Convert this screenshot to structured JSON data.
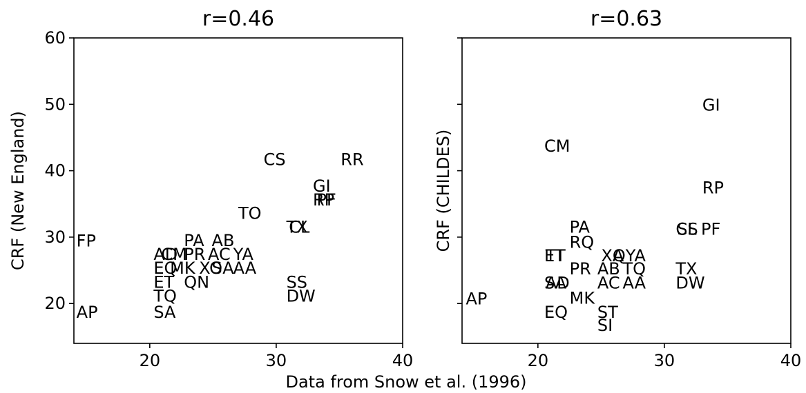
{
  "figure": {
    "xlabel": "Data from Snow et al. (1996)"
  },
  "chart_data": [
    {
      "type": "scatter",
      "title": "r=0.46",
      "xlabel": "",
      "ylabel": "CRF (New England)",
      "xlim": [
        14,
        40
      ],
      "ylim": [
        14,
        60
      ],
      "xticks": [
        20,
        30,
        40
      ],
      "yticks": [
        20,
        30,
        40,
        50,
        60
      ],
      "show_yticklabels": true,
      "grid": false,
      "points": [
        {
          "label": "FP",
          "x": 14.2,
          "y": 29.5
        },
        {
          "label": "AP",
          "x": 14.2,
          "y": 18.8
        },
        {
          "label": "CS",
          "x": 29.0,
          "y": 41.8
        },
        {
          "label": "RR",
          "x": 35.1,
          "y": 41.8
        },
        {
          "label": "GI",
          "x": 32.9,
          "y": 37.8
        },
        {
          "label": "RP",
          "x": 32.9,
          "y": 35.7
        },
        {
          "label": "PF",
          "x": 33.2,
          "y": 35.7
        },
        {
          "label": "TO",
          "x": 27.0,
          "y": 33.7
        },
        {
          "label": "TX",
          "x": 30.8,
          "y": 31.6
        },
        {
          "label": "CL",
          "x": 31.0,
          "y": 31.6
        },
        {
          "label": "PA",
          "x": 22.7,
          "y": 29.6
        },
        {
          "label": "AB",
          "x": 24.9,
          "y": 29.6
        },
        {
          "label": "AD",
          "x": 20.3,
          "y": 27.5
        },
        {
          "label": "CM",
          "x": 20.9,
          "y": 27.5
        },
        {
          "label": "PR",
          "x": 22.7,
          "y": 27.5
        },
        {
          "label": "AC",
          "x": 24.6,
          "y": 27.5
        },
        {
          "label": "YA",
          "x": 26.6,
          "y": 27.5
        },
        {
          "label": "EQ",
          "x": 20.3,
          "y": 25.4
        },
        {
          "label": "MK",
          "x": 21.6,
          "y": 25.4
        },
        {
          "label": "XO",
          "x": 23.9,
          "y": 25.4
        },
        {
          "label": "SA",
          "x": 24.9,
          "y": 25.4
        },
        {
          "label": "AA",
          "x": 26.6,
          "y": 25.4
        },
        {
          "label": "ET",
          "x": 20.3,
          "y": 23.3
        },
        {
          "label": "QN",
          "x": 22.7,
          "y": 23.3
        },
        {
          "label": "SS",
          "x": 30.8,
          "y": 23.3
        },
        {
          "label": "TQ",
          "x": 20.3,
          "y": 21.2
        },
        {
          "label": "DW",
          "x": 30.8,
          "y": 21.2
        },
        {
          "label": "SA",
          "x": 20.3,
          "y": 18.8
        }
      ]
    },
    {
      "type": "scatter",
      "title": "r=0.63",
      "xlabel": "",
      "ylabel": "CRF (CHILDES)",
      "xlim": [
        14,
        40
      ],
      "ylim": [
        14,
        60
      ],
      "xticks": [
        20,
        30,
        40
      ],
      "yticks": [
        20,
        30,
        40,
        50,
        60
      ],
      "show_yticklabels": false,
      "grid": false,
      "points": [
        {
          "label": "GI",
          "x": 33.0,
          "y": 50.0
        },
        {
          "label": "CM",
          "x": 20.5,
          "y": 43.8
        },
        {
          "label": "RP",
          "x": 33.0,
          "y": 37.5
        },
        {
          "label": "PA",
          "x": 22.5,
          "y": 31.6
        },
        {
          "label": "CL",
          "x": 30.9,
          "y": 31.3
        },
        {
          "label": "SS",
          "x": 31.0,
          "y": 31.3
        },
        {
          "label": "PF",
          "x": 32.9,
          "y": 31.3
        },
        {
          "label": "RQ",
          "x": 22.5,
          "y": 29.3
        },
        {
          "label": "ET",
          "x": 20.5,
          "y": 27.3
        },
        {
          "label": "TT",
          "x": 20.6,
          "y": 27.3
        },
        {
          "label": "XA",
          "x": 25.0,
          "y": 27.3
        },
        {
          "label": "QYA",
          "x": 25.9,
          "y": 27.3
        },
        {
          "label": "PR",
          "x": 22.5,
          "y": 25.3
        },
        {
          "label": "AB",
          "x": 24.7,
          "y": 25.3
        },
        {
          "label": "TQ",
          "x": 26.7,
          "y": 25.3
        },
        {
          "label": "TX",
          "x": 30.9,
          "y": 25.3
        },
        {
          "label": "SA",
          "x": 20.5,
          "y": 23.2
        },
        {
          "label": "AD",
          "x": 20.6,
          "y": 23.2
        },
        {
          "label": "AC",
          "x": 24.7,
          "y": 23.2
        },
        {
          "label": "AA",
          "x": 26.7,
          "y": 23.2
        },
        {
          "label": "DW",
          "x": 30.9,
          "y": 23.2
        },
        {
          "label": "AP",
          "x": 14.3,
          "y": 20.8
        },
        {
          "label": "MK",
          "x": 22.5,
          "y": 20.9
        },
        {
          "label": "EQ",
          "x": 20.5,
          "y": 18.8
        },
        {
          "label": "ST",
          "x": 24.7,
          "y": 18.8
        },
        {
          "label": "SI",
          "x": 24.7,
          "y": 16.8
        }
      ]
    }
  ]
}
